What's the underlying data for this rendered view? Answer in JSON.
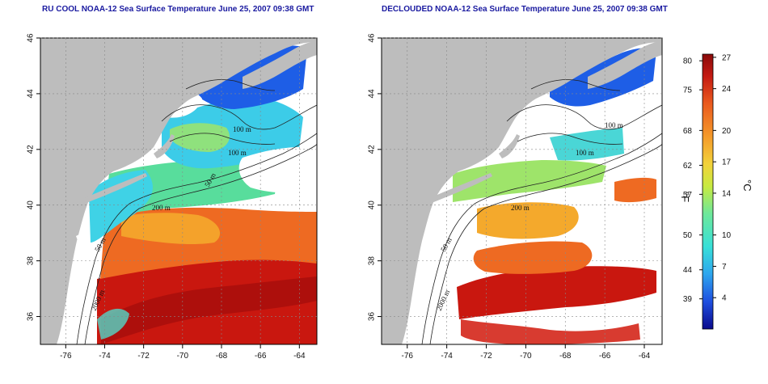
{
  "titles": {
    "left": "RU COOL NOAA-12 Sea Surface Temperature June 25, 2007 09:38 GMT",
    "right": "DECLOUDED NOAA-12 Sea Surface Temperature June 25, 2007 09:38 GMT"
  },
  "axes": {
    "x_ticks": [
      "-76",
      "-74",
      "-72",
      "-70",
      "-68",
      "-66",
      "-64"
    ],
    "x_values": [
      -76,
      -74,
      -72,
      -70,
      -68,
      -66,
      -64
    ],
    "x_range": [
      -77.3,
      -63.1
    ],
    "y_ticks": [
      "36",
      "38",
      "40",
      "42",
      "44",
      "46"
    ],
    "y_values": [
      36,
      38,
      40,
      42,
      44,
      46
    ],
    "y_range": [
      35,
      46
    ]
  },
  "contour_labels": {
    "left": [
      "100 m",
      "100 m",
      "50 m",
      "200 m",
      "50 m",
      "2000 m"
    ],
    "right": [
      "100 m",
      "100 m",
      "200 m",
      "50 m",
      "2000 m"
    ]
  },
  "colorbar": {
    "fahrenheit_ticks": [
      "80",
      "75",
      "68",
      "62",
      "57",
      "50",
      "44",
      "39"
    ],
    "fahrenheit_values": [
      80,
      75,
      68,
      62,
      57,
      50,
      44,
      39
    ],
    "celsius_ticks": [
      "27",
      "24",
      "20",
      "17",
      "14",
      "10",
      "7",
      "4"
    ],
    "celsius_values": [
      27,
      24,
      20,
      17,
      14,
      10,
      7,
      4
    ],
    "celsius_range": [
      1,
      27.3
    ],
    "fahrenheit_label": "°F",
    "celsius_label": "°C",
    "colors": [
      "#0a0a8c",
      "#1f4fe0",
      "#2ea6ee",
      "#38e0d8",
      "#6ee89a",
      "#c8ea40",
      "#f2d23a",
      "#f59a2a",
      "#ea5a1e",
      "#c41a12",
      "#8a0a0a"
    ]
  },
  "colors": {
    "land": "#bdbdbd",
    "no_data": "#ffffff",
    "title_text": "#1a1aa0"
  }
}
